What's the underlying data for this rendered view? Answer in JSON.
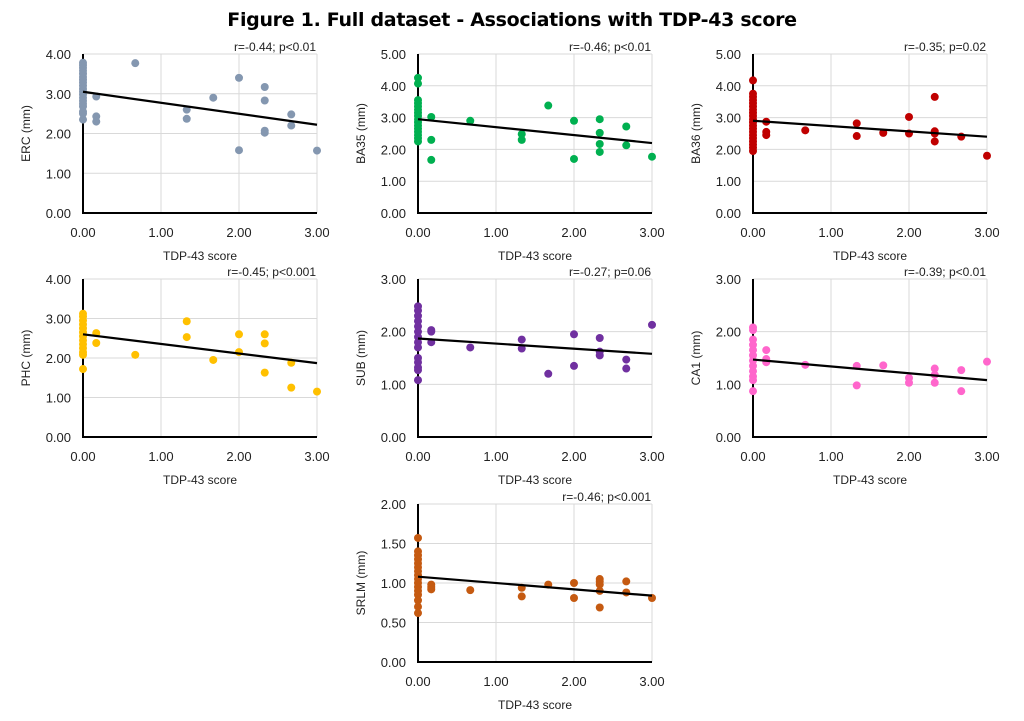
{
  "title": "Figure 1. Full dataset - Associations with TDP-43 score",
  "chart_data": [
    {
      "type": "scatter",
      "ylabel": "ERC (mm)",
      "xlabel": "TDP-43 score",
      "annotation": "r=-0.44; p<0.01",
      "color": "#8497b0",
      "xlim": [
        0,
        3
      ],
      "ylim": [
        0,
        4
      ],
      "xticks": [
        "0.00",
        "1.00",
        "2.00",
        "3.00"
      ],
      "yticks": [
        "0.00",
        "1.00",
        "2.00",
        "3.00",
        "4.00"
      ],
      "grid": true,
      "trendline": [
        [
          0,
          3.05
        ],
        [
          3,
          2.22
        ]
      ],
      "points": [
        [
          0,
          3.78
        ],
        [
          0,
          3.72
        ],
        [
          0,
          3.65
        ],
        [
          0,
          3.58
        ],
        [
          0,
          3.5
        ],
        [
          0,
          3.42
        ],
        [
          0,
          3.35
        ],
        [
          0,
          3.28
        ],
        [
          0,
          3.2
        ],
        [
          0,
          3.12
        ],
        [
          0,
          3.05
        ],
        [
          0,
          2.98
        ],
        [
          0,
          2.9
        ],
        [
          0,
          2.82
        ],
        [
          0,
          2.75
        ],
        [
          0,
          2.68
        ],
        [
          0,
          2.55
        ],
        [
          0,
          2.5
        ],
        [
          0,
          2.35
        ],
        [
          0.17,
          2.93
        ],
        [
          0.17,
          2.43
        ],
        [
          0.17,
          2.3
        ],
        [
          0.67,
          3.77
        ],
        [
          1.33,
          2.6
        ],
        [
          1.33,
          2.37
        ],
        [
          1.67,
          2.9
        ],
        [
          2,
          3.4
        ],
        [
          2,
          1.58
        ],
        [
          2.33,
          3.17
        ],
        [
          2.33,
          2.83
        ],
        [
          2.33,
          2.07
        ],
        [
          2.33,
          2.02
        ],
        [
          2.67,
          2.48
        ],
        [
          2.67,
          2.2
        ],
        [
          3,
          1.57
        ]
      ]
    },
    {
      "type": "scatter",
      "ylabel": "BA35 (mm)",
      "xlabel": "TDP-43 score",
      "annotation": "r=-0.46; p<0.01",
      "color": "#00b050",
      "xlim": [
        0,
        3
      ],
      "ylim": [
        0,
        5
      ],
      "xticks": [
        "0.00",
        "1.00",
        "2.00",
        "3.00"
      ],
      "yticks": [
        "0.00",
        "1.00",
        "2.00",
        "3.00",
        "4.00",
        "5.00"
      ],
      "grid": true,
      "trendline": [
        [
          0,
          2.95
        ],
        [
          3,
          2.2
        ]
      ],
      "points": [
        [
          0,
          4.25
        ],
        [
          0,
          4.07
        ],
        [
          0,
          3.55
        ],
        [
          0,
          3.45
        ],
        [
          0,
          3.35
        ],
        [
          0,
          3.25
        ],
        [
          0,
          3.15
        ],
        [
          0,
          3.05
        ],
        [
          0,
          2.95
        ],
        [
          0,
          2.85
        ],
        [
          0,
          2.75
        ],
        [
          0,
          2.65
        ],
        [
          0,
          2.55
        ],
        [
          0,
          2.45
        ],
        [
          0,
          2.35
        ],
        [
          0,
          2.25
        ],
        [
          0.17,
          3.02
        ],
        [
          0.17,
          2.3
        ],
        [
          0.17,
          1.67
        ],
        [
          0.67,
          2.9
        ],
        [
          1.33,
          2.48
        ],
        [
          1.33,
          2.3
        ],
        [
          1.67,
          3.38
        ],
        [
          2,
          2.9
        ],
        [
          2,
          1.7
        ],
        [
          2.33,
          2.95
        ],
        [
          2.33,
          2.52
        ],
        [
          2.33,
          2.17
        ],
        [
          2.33,
          1.92
        ],
        [
          2.67,
          2.72
        ],
        [
          2.67,
          2.13
        ],
        [
          3,
          1.77
        ]
      ]
    },
    {
      "type": "scatter",
      "ylabel": "BA36 (mm)",
      "xlabel": "TDP-43 score",
      "annotation": "r=-0.35; p=0.02",
      "color": "#c00000",
      "xlim": [
        0,
        3
      ],
      "ylim": [
        0,
        5
      ],
      "xticks": [
        "0.00",
        "1.00",
        "2.00",
        "3.00"
      ],
      "yticks": [
        "0.00",
        "1.00",
        "2.00",
        "3.00",
        "4.00",
        "5.00"
      ],
      "grid": true,
      "trendline": [
        [
          0,
          2.9
        ],
        [
          3,
          2.4
        ]
      ],
      "points": [
        [
          0,
          4.17
        ],
        [
          0,
          3.75
        ],
        [
          0,
          3.65
        ],
        [
          0,
          3.55
        ],
        [
          0,
          3.45
        ],
        [
          0,
          3.35
        ],
        [
          0,
          3.25
        ],
        [
          0,
          3.15
        ],
        [
          0,
          3.05
        ],
        [
          0,
          2.95
        ],
        [
          0,
          2.85
        ],
        [
          0,
          2.75
        ],
        [
          0,
          2.65
        ],
        [
          0,
          2.55
        ],
        [
          0,
          2.45
        ],
        [
          0,
          2.35
        ],
        [
          0,
          2.25
        ],
        [
          0,
          2.15
        ],
        [
          0,
          2.05
        ],
        [
          0,
          1.95
        ],
        [
          0.17,
          2.87
        ],
        [
          0.17,
          2.55
        ],
        [
          0.17,
          2.45
        ],
        [
          0.67,
          2.6
        ],
        [
          1.33,
          2.82
        ],
        [
          1.33,
          2.42
        ],
        [
          1.67,
          2.52
        ],
        [
          2,
          3.02
        ],
        [
          2,
          2.5
        ],
        [
          2.33,
          3.65
        ],
        [
          2.33,
          2.57
        ],
        [
          2.33,
          2.5
        ],
        [
          2.33,
          2.25
        ],
        [
          2.67,
          2.4
        ],
        [
          3,
          1.8
        ]
      ]
    },
    {
      "type": "scatter",
      "ylabel": "PHC (mm)",
      "xlabel": "TDP-43 score",
      "annotation": "r=-0.45; p<0.001",
      "color": "#ffc000",
      "xlim": [
        0,
        3
      ],
      "ylim": [
        0,
        4
      ],
      "xticks": [
        "0.00",
        "1.00",
        "2.00",
        "3.00"
      ],
      "yticks": [
        "0.00",
        "1.00",
        "2.00",
        "3.00",
        "4.00"
      ],
      "grid": true,
      "trendline": [
        [
          0,
          2.6
        ],
        [
          3,
          1.87
        ]
      ],
      "points": [
        [
          0,
          3.12
        ],
        [
          0,
          3.05
        ],
        [
          0,
          2.95
        ],
        [
          0,
          2.85
        ],
        [
          0,
          2.75
        ],
        [
          0,
          2.65
        ],
        [
          0,
          2.55
        ],
        [
          0,
          2.45
        ],
        [
          0,
          2.35
        ],
        [
          0,
          2.25
        ],
        [
          0,
          2.15
        ],
        [
          0,
          2.08
        ],
        [
          0,
          1.72
        ],
        [
          0.17,
          2.63
        ],
        [
          0.17,
          2.38
        ],
        [
          0.67,
          2.08
        ],
        [
          1.33,
          2.93
        ],
        [
          1.33,
          2.53
        ],
        [
          1.67,
          1.95
        ],
        [
          2,
          2.6
        ],
        [
          2,
          2.15
        ],
        [
          2.33,
          2.6
        ],
        [
          2.33,
          2.37
        ],
        [
          2.33,
          1.63
        ],
        [
          2.67,
          1.88
        ],
        [
          2.67,
          1.25
        ],
        [
          3,
          1.15
        ]
      ]
    },
    {
      "type": "scatter",
      "ylabel": "SUB (mm)",
      "xlabel": "TDP-43 score",
      "annotation": "r=-0.27; p=0.06",
      "color": "#7030a0",
      "xlim": [
        0,
        3
      ],
      "ylim": [
        0,
        3
      ],
      "xticks": [
        "0.00",
        "1.00",
        "2.00",
        "3.00"
      ],
      "yticks": [
        "0.00",
        "1.00",
        "2.00",
        "3.00"
      ],
      "grid": true,
      "trendline": [
        [
          0,
          1.87
        ],
        [
          3,
          1.58
        ]
      ],
      "points": [
        [
          0,
          2.48
        ],
        [
          0,
          2.4
        ],
        [
          0,
          2.3
        ],
        [
          0,
          2.2
        ],
        [
          0,
          2.1
        ],
        [
          0,
          2.0
        ],
        [
          0,
          1.9
        ],
        [
          0,
          1.8
        ],
        [
          0,
          1.7
        ],
        [
          0,
          1.5
        ],
        [
          0,
          1.42
        ],
        [
          0,
          1.32
        ],
        [
          0,
          1.27
        ],
        [
          0,
          1.08
        ],
        [
          0.17,
          2.03
        ],
        [
          0.17,
          2.0
        ],
        [
          0.17,
          1.8
        ],
        [
          0.67,
          1.7
        ],
        [
          1.33,
          1.85
        ],
        [
          1.33,
          1.68
        ],
        [
          1.67,
          1.2
        ],
        [
          2,
          1.95
        ],
        [
          2,
          1.35
        ],
        [
          2.33,
          1.88
        ],
        [
          2.33,
          1.62
        ],
        [
          2.33,
          1.55
        ],
        [
          2.67,
          1.47
        ],
        [
          2.67,
          1.3
        ],
        [
          3,
          2.13
        ]
      ]
    },
    {
      "type": "scatter",
      "ylabel": "CA1 (mm)",
      "xlabel": "TDP-43 score",
      "annotation": "r=-0.39; p<0.01",
      "color": "#ff66cc",
      "xlim": [
        0,
        3
      ],
      "ylim": [
        0,
        3
      ],
      "xticks": [
        "0.00",
        "1.00",
        "2.00",
        "3.00"
      ],
      "yticks": [
        "0.00",
        "1.00",
        "2.00",
        "3.00"
      ],
      "grid": true,
      "trendline": [
        [
          0,
          1.47
        ],
        [
          3,
          1.08
        ]
      ],
      "points": [
        [
          0,
          2.08
        ],
        [
          0,
          2.03
        ],
        [
          0,
          1.85
        ],
        [
          0,
          1.75
        ],
        [
          0,
          1.65
        ],
        [
          0,
          1.55
        ],
        [
          0,
          1.45
        ],
        [
          0,
          1.35
        ],
        [
          0,
          1.25
        ],
        [
          0,
          1.15
        ],
        [
          0,
          1.08
        ],
        [
          0,
          0.87
        ],
        [
          0.17,
          1.65
        ],
        [
          0.17,
          1.48
        ],
        [
          0.17,
          1.42
        ],
        [
          0.67,
          1.37
        ],
        [
          1.33,
          1.35
        ],
        [
          1.33,
          0.98
        ],
        [
          1.67,
          1.36
        ],
        [
          2,
          1.12
        ],
        [
          2,
          1.03
        ],
        [
          2.33,
          1.3
        ],
        [
          2.33,
          1.18
        ],
        [
          2.33,
          1.03
        ],
        [
          2.67,
          1.27
        ],
        [
          2.67,
          0.87
        ],
        [
          3,
          1.43
        ]
      ]
    },
    {
      "type": "scatter",
      "ylabel": "SRLM (mm)",
      "xlabel": "TDP-43 score",
      "annotation": "r=-0.46; p<0.001",
      "color": "#c55a11",
      "xlim": [
        0,
        3
      ],
      "ylim": [
        0,
        2
      ],
      "xticks": [
        "0.00",
        "1.00",
        "2.00",
        "3.00"
      ],
      "yticks": [
        "0.00",
        "0.50",
        "1.00",
        "1.50",
        "2.00"
      ],
      "grid": true,
      "trendline": [
        [
          0,
          1.08
        ],
        [
          3,
          0.84
        ]
      ],
      "points": [
        [
          0,
          1.57
        ],
        [
          0,
          1.4
        ],
        [
          0,
          1.35
        ],
        [
          0,
          1.3
        ],
        [
          0,
          1.25
        ],
        [
          0,
          1.2
        ],
        [
          0,
          1.15
        ],
        [
          0,
          1.1
        ],
        [
          0,
          1.05
        ],
        [
          0,
          1.0
        ],
        [
          0,
          0.95
        ],
        [
          0,
          0.9
        ],
        [
          0,
          0.85
        ],
        [
          0,
          0.78
        ],
        [
          0,
          0.7
        ],
        [
          0,
          0.62
        ],
        [
          0.17,
          0.98
        ],
        [
          0.17,
          0.95
        ],
        [
          0.17,
          0.92
        ],
        [
          0.67,
          0.91
        ],
        [
          1.33,
          0.94
        ],
        [
          1.33,
          0.83
        ],
        [
          1.67,
          0.98
        ],
        [
          2,
          1.0
        ],
        [
          2,
          0.81
        ],
        [
          2.33,
          1.05
        ],
        [
          2.33,
          1.02
        ],
        [
          2.33,
          0.98
        ],
        [
          2.33,
          0.9
        ],
        [
          2.33,
          0.69
        ],
        [
          2.67,
          1.02
        ],
        [
          2.67,
          0.88
        ],
        [
          3,
          0.81
        ]
      ]
    }
  ]
}
